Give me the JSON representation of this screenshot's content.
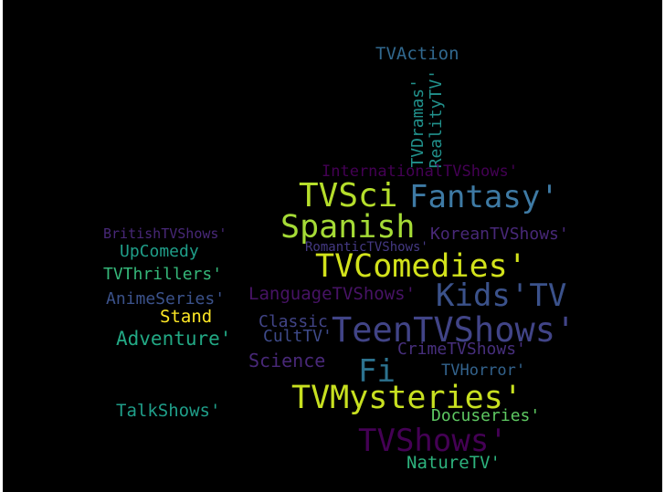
{
  "words": [
    {
      "text": "TVAction",
      "color": "#31688e"
    },
    {
      "text": "TVDramas'",
      "color": "#21918c"
    },
    {
      "text": "RealityTV'",
      "color": "#21918c"
    },
    {
      "text": "InternationalTVShows'",
      "color": "#440154"
    },
    {
      "text": "TVSci",
      "color": "#b5de2b"
    },
    {
      "text": "Fantasy'",
      "color": "#3e7aa4"
    },
    {
      "text": "Spanish",
      "color": "#a5db36"
    },
    {
      "text": "BritishTVShows'",
      "color": "#482878"
    },
    {
      "text": "KoreanTVShows'",
      "color": "#482878"
    },
    {
      "text": "RomanticTVShows'",
      "color": "#443983"
    },
    {
      "text": "UpComedy",
      "color": "#1f9e89"
    },
    {
      "text": "TVComedies'",
      "color": "#d2e21b"
    },
    {
      "text": "TVThrillers'",
      "color": "#35b779"
    },
    {
      "text": "LanguageTVShows'",
      "color": "#471365"
    },
    {
      "text": "Kids'TV",
      "color": "#3b528b"
    },
    {
      "text": "AnimeSeries'",
      "color": "#3b528b"
    },
    {
      "text": "Stand",
      "color": "#fde725"
    },
    {
      "text": "Classic",
      "color": "#414487"
    },
    {
      "text": "TeenTVShows'",
      "color": "#414487"
    },
    {
      "text": "Adventure'",
      "color": "#22a884"
    },
    {
      "text": "CultTV'",
      "color": "#3e4a89"
    },
    {
      "text": "CrimeTVShows'",
      "color": "#472f7d"
    },
    {
      "text": "Science",
      "color": "#482878"
    },
    {
      "text": "Fi",
      "color": "#2c728e"
    },
    {
      "text": "TVHorror'",
      "color": "#33638d"
    },
    {
      "text": "TVMysteries'",
      "color": "#c8e020"
    },
    {
      "text": "TalkShows'",
      "color": "#1f9e89"
    },
    {
      "text": "Docuseries'",
      "color": "#5ec962"
    },
    {
      "text": "TVShows'",
      "color": "#440154"
    },
    {
      "text": "NatureTV'",
      "color": "#2db27d"
    }
  ]
}
